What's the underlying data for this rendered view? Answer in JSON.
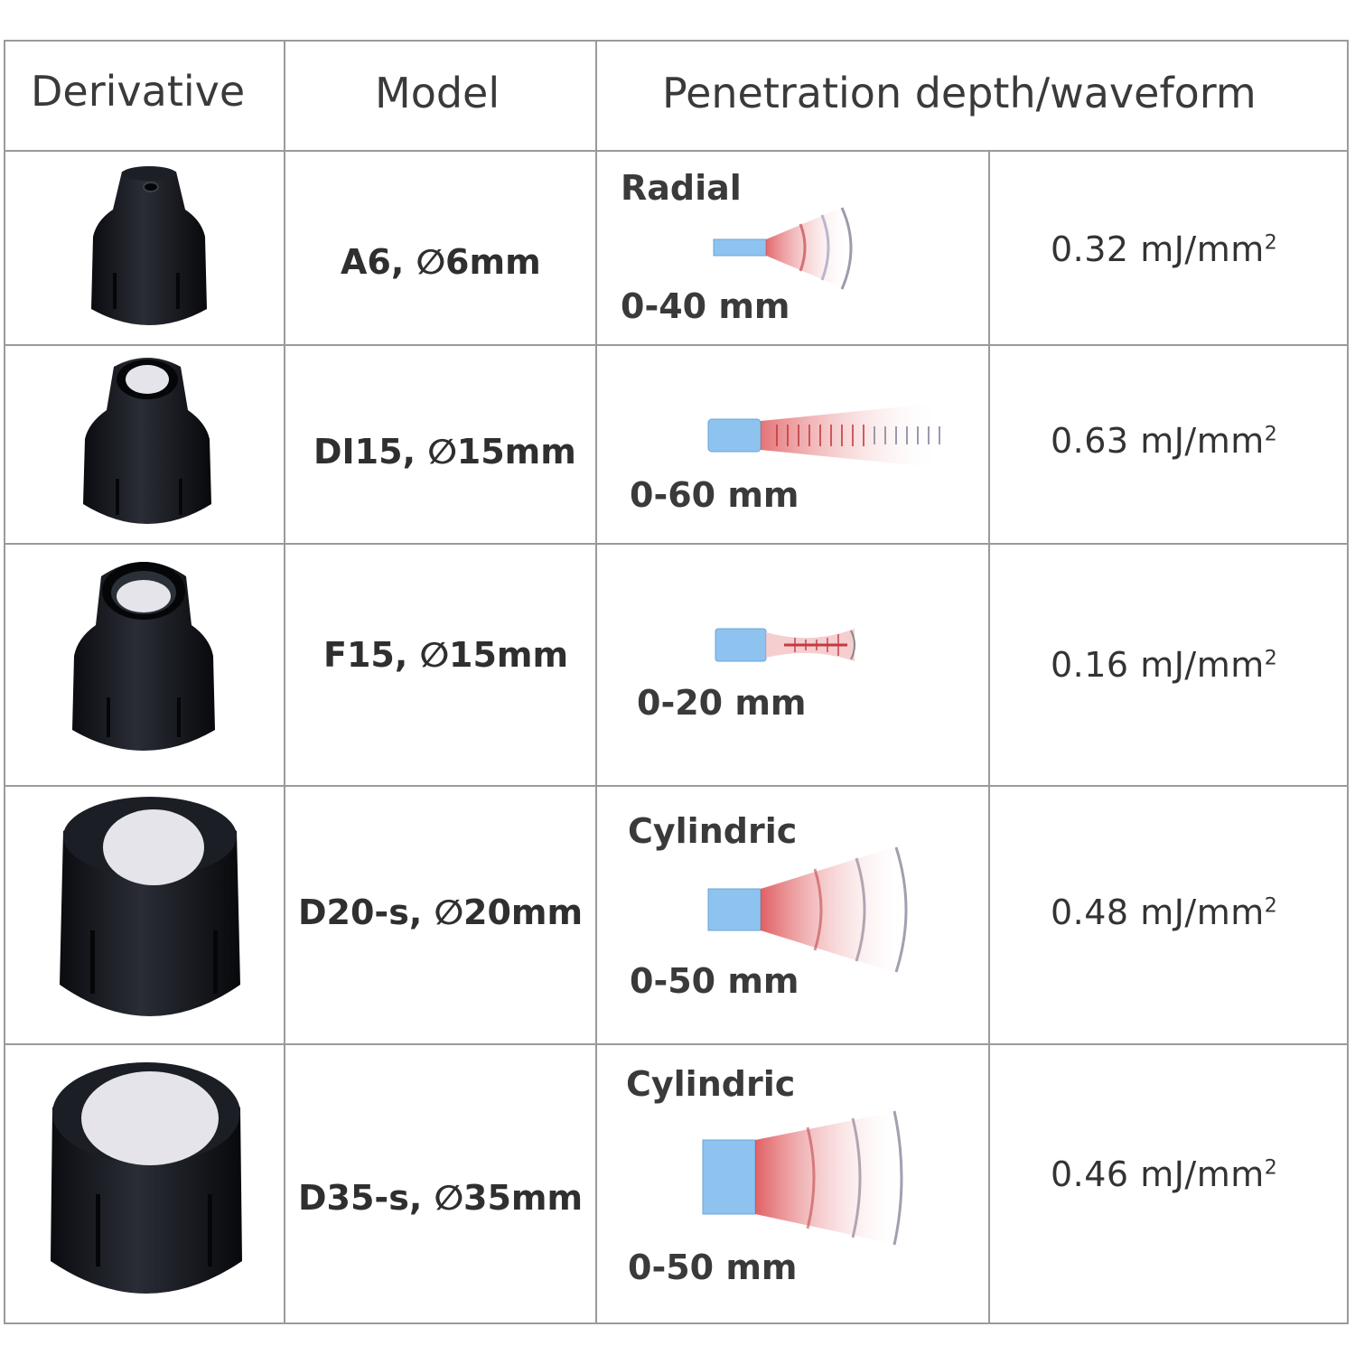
{
  "table": {
    "headers": {
      "derivative": "Derivative",
      "model": "Model",
      "penetration": "Penetration depth/waveform"
    },
    "rows": [
      {
        "model": "A6, ∅6mm",
        "wave_label": "Radial",
        "depth": "0-40 mm",
        "energy": "0.32 mJ/mm",
        "energy_exp": "2",
        "waveform_type": "radial",
        "photo": "applicator-a6"
      },
      {
        "model": "DI15, ∅15mm",
        "wave_label": "",
        "depth": "0-60 mm",
        "energy": "0.63 mJ/mm",
        "energy_exp": "2",
        "waveform_type": "planar",
        "photo": "applicator-di15"
      },
      {
        "model": "F15, ∅15mm",
        "wave_label": "",
        "depth": "0-20 mm",
        "energy": "0.16 mJ/mm",
        "energy_exp": "2",
        "waveform_type": "focused",
        "photo": "applicator-f15"
      },
      {
        "model": "D20-s, ∅20mm",
        "wave_label": "Cylindric",
        "depth": "0-50 mm",
        "energy": "0.48 mJ/mm",
        "energy_exp": "2",
        "waveform_type": "cylindric",
        "photo": "applicator-d20s"
      },
      {
        "model": "D35-s, ∅35mm",
        "wave_label": "Cylindric",
        "depth": "0-50 mm",
        "energy": "0.46 mJ/mm",
        "energy_exp": "2",
        "waveform_type": "cylindric",
        "photo": "applicator-d35s"
      }
    ]
  },
  "colors": {
    "grid": "#9a9a9a",
    "applicator_body": "#14161c",
    "applicator_lens": "#e4e4ea",
    "transducer": "#8ec3ef",
    "wave_red": "#d9383c"
  }
}
